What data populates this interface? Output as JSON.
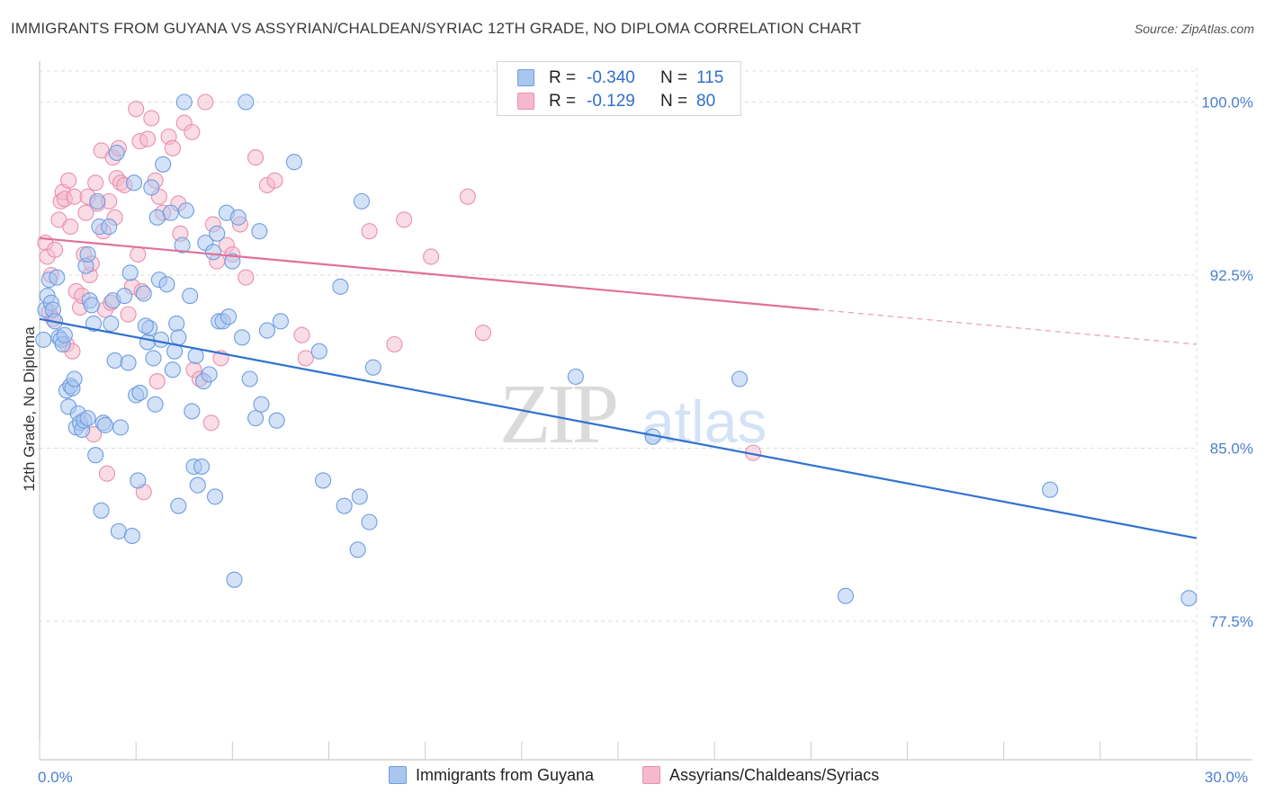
{
  "header": {
    "title": "IMMIGRANTS FROM GUYANA VS ASSYRIAN/CHALDEAN/SYRIAC 12TH GRADE, NO DIPLOMA CORRELATION CHART",
    "source": "Source: ZipAtlas.com"
  },
  "watermark": {
    "zip": "ZIP",
    "atlas": "atlas"
  },
  "legend": {
    "rows": [
      {
        "r_label": "R =",
        "r_value": "-0.340",
        "n_label": "N =",
        "n_value": "115"
      },
      {
        "r_label": "R =",
        "r_value": "-0.129",
        "n_label": "N =",
        "n_value": "80"
      }
    ]
  },
  "bottom_legend": {
    "series1": "Immigrants from Guyana",
    "series2": "Assyrians/Chaldeans/Syriacs"
  },
  "colors": {
    "series1_fill": "#a9c6ef",
    "series1_stroke": "#6e9de0",
    "series1_line": "#2f72d0",
    "series2_fill": "#f6b9cc",
    "series2_stroke": "#ea8fae",
    "series2_line": "#e0709a",
    "tick_label": "#4a7fd0",
    "grid": "#dddddd"
  },
  "chart_data": {
    "type": "scatter",
    "title": "IMMIGRANTS FROM GUYANA VS ASSYRIAN/CHALDEAN/SYRIAC 12TH GRADE, NO DIPLOMA CORRELATION CHART",
    "xlabel": "",
    "ylabel": "12th Grade, No Diploma",
    "xlim": [
      0,
      30
    ],
    "ylim": [
      71.5,
      101.5
    ],
    "x_ticks": [
      0,
      30
    ],
    "x_tick_labels": [
      "0.0%",
      "30.0%"
    ],
    "y_ticks": [
      77.5,
      85.0,
      92.5,
      100.0
    ],
    "y_tick_labels": [
      "77.5%",
      "85.0%",
      "92.5%",
      "100.0%"
    ],
    "grid": true,
    "legend_position": "top-center",
    "series": [
      {
        "name": "Immigrants from Guyana",
        "r": -0.34,
        "n": 115,
        "trend": {
          "x": [
            0,
            30
          ],
          "y": [
            90.6,
            81.1
          ],
          "solid_until": 30
        },
        "points": [
          [
            0.15,
            91.0
          ],
          [
            0.2,
            91.6
          ],
          [
            0.25,
            92.3
          ],
          [
            0.3,
            91.3
          ],
          [
            0.35,
            91.0
          ],
          [
            0.4,
            90.5
          ],
          [
            0.45,
            92.4
          ],
          [
            0.5,
            89.8
          ],
          [
            0.55,
            89.7
          ],
          [
            0.6,
            89.5
          ],
          [
            0.65,
            89.9
          ],
          [
            0.7,
            87.5
          ],
          [
            0.75,
            86.8
          ],
          [
            0.8,
            87.7
          ],
          [
            0.85,
            87.6
          ],
          [
            0.9,
            88.0
          ],
          [
            0.95,
            85.9
          ],
          [
            1.0,
            86.5
          ],
          [
            1.05,
            86.1
          ],
          [
            1.1,
            85.8
          ],
          [
            1.15,
            86.2
          ],
          [
            1.2,
            92.9
          ],
          [
            1.25,
            93.4
          ],
          [
            1.3,
            91.4
          ],
          [
            1.35,
            91.2
          ],
          [
            1.4,
            90.4
          ],
          [
            1.45,
            84.7
          ],
          [
            1.5,
            95.7
          ],
          [
            1.55,
            94.6
          ],
          [
            1.6,
            82.3
          ],
          [
            1.65,
            86.1
          ],
          [
            1.7,
            86.0
          ],
          [
            1.8,
            94.6
          ],
          [
            1.85,
            90.4
          ],
          [
            1.9,
            91.4
          ],
          [
            1.95,
            88.8
          ],
          [
            2.0,
            97.8
          ],
          [
            2.05,
            81.4
          ],
          [
            2.1,
            85.9
          ],
          [
            2.2,
            91.6
          ],
          [
            2.3,
            88.7
          ],
          [
            2.35,
            92.6
          ],
          [
            2.4,
            81.2
          ],
          [
            2.45,
            96.5
          ],
          [
            2.5,
            87.3
          ],
          [
            2.55,
            83.6
          ],
          [
            2.6,
            87.4
          ],
          [
            2.7,
            91.7
          ],
          [
            2.8,
            89.6
          ],
          [
            2.85,
            90.2
          ],
          [
            2.9,
            96.3
          ],
          [
            2.95,
            88.9
          ],
          [
            3.0,
            86.9
          ],
          [
            3.05,
            95.0
          ],
          [
            3.1,
            92.3
          ],
          [
            3.15,
            89.7
          ],
          [
            3.2,
            97.3
          ],
          [
            3.3,
            92.1
          ],
          [
            3.4,
            95.2
          ],
          [
            3.45,
            88.4
          ],
          [
            3.5,
            89.2
          ],
          [
            3.55,
            90.4
          ],
          [
            3.6,
            82.5
          ],
          [
            3.7,
            93.8
          ],
          [
            3.75,
            100.0
          ],
          [
            3.8,
            95.3
          ],
          [
            3.9,
            91.6
          ],
          [
            3.95,
            86.6
          ],
          [
            4.0,
            84.2
          ],
          [
            4.05,
            89.0
          ],
          [
            4.1,
            83.4
          ],
          [
            4.2,
            84.2
          ],
          [
            4.25,
            87.9
          ],
          [
            4.3,
            93.9
          ],
          [
            4.4,
            88.2
          ],
          [
            4.5,
            93.5
          ],
          [
            4.55,
            82.9
          ],
          [
            4.6,
            94.3
          ],
          [
            4.65,
            90.5
          ],
          [
            4.75,
            90.5
          ],
          [
            4.85,
            95.2
          ],
          [
            4.9,
            90.7
          ],
          [
            5.0,
            93.1
          ],
          [
            5.05,
            79.3
          ],
          [
            5.15,
            95.0
          ],
          [
            5.25,
            89.8
          ],
          [
            5.35,
            100.0
          ],
          [
            5.45,
            88.0
          ],
          [
            5.6,
            86.3
          ],
          [
            5.7,
            94.4
          ],
          [
            5.75,
            86.9
          ],
          [
            5.9,
            90.1
          ],
          [
            6.15,
            86.2
          ],
          [
            6.25,
            90.5
          ],
          [
            6.6,
            97.4
          ],
          [
            7.25,
            89.2
          ],
          [
            7.35,
            83.6
          ],
          [
            7.8,
            92.0
          ],
          [
            7.9,
            82.5
          ],
          [
            8.35,
            95.7
          ],
          [
            8.25,
            80.6
          ],
          [
            8.3,
            82.9
          ],
          [
            8.55,
            81.8
          ],
          [
            8.65,
            88.5
          ],
          [
            13.9,
            88.1
          ],
          [
            15.9,
            85.5
          ],
          [
            18.15,
            88.0
          ],
          [
            20.9,
            78.6
          ],
          [
            26.2,
            83.2
          ],
          [
            29.8,
            78.5
          ],
          [
            0.1,
            89.7
          ],
          [
            2.75,
            90.3
          ],
          [
            1.25,
            86.3
          ],
          [
            3.6,
            89.8
          ]
        ]
      },
      {
        "name": "Assyrians/Chaldeans/Syriacs",
        "r": -0.129,
        "n": 80,
        "trend": {
          "x": [
            0,
            30
          ],
          "y": [
            94.1,
            89.5
          ],
          "solid_until": 20.2
        },
        "points": [
          [
            0.15,
            93.9
          ],
          [
            0.2,
            93.3
          ],
          [
            0.25,
            90.9
          ],
          [
            0.3,
            92.5
          ],
          [
            0.35,
            90.6
          ],
          [
            0.4,
            93.6
          ],
          [
            0.5,
            94.9
          ],
          [
            0.55,
            95.7
          ],
          [
            0.6,
            96.1
          ],
          [
            0.65,
            95.8
          ],
          [
            0.7,
            89.5
          ],
          [
            0.75,
            96.6
          ],
          [
            0.8,
            94.6
          ],
          [
            0.85,
            89.2
          ],
          [
            0.9,
            95.9
          ],
          [
            0.95,
            91.8
          ],
          [
            1.05,
            91.1
          ],
          [
            1.1,
            91.6
          ],
          [
            1.15,
            93.4
          ],
          [
            1.2,
            95.2
          ],
          [
            1.25,
            95.9
          ],
          [
            1.3,
            92.5
          ],
          [
            1.35,
            93.0
          ],
          [
            1.4,
            85.6
          ],
          [
            1.45,
            96.5
          ],
          [
            1.5,
            95.6
          ],
          [
            1.6,
            97.9
          ],
          [
            1.65,
            94.4
          ],
          [
            1.7,
            91.0
          ],
          [
            1.75,
            83.9
          ],
          [
            1.8,
            95.7
          ],
          [
            1.85,
            91.3
          ],
          [
            1.9,
            97.6
          ],
          [
            2.0,
            96.7
          ],
          [
            2.05,
            98.0
          ],
          [
            2.1,
            96.5
          ],
          [
            2.2,
            96.4
          ],
          [
            2.3,
            90.8
          ],
          [
            2.4,
            92.0
          ],
          [
            2.5,
            99.7
          ],
          [
            2.55,
            93.4
          ],
          [
            2.6,
            98.3
          ],
          [
            2.65,
            91.8
          ],
          [
            2.7,
            83.1
          ],
          [
            2.8,
            98.4
          ],
          [
            2.9,
            99.3
          ],
          [
            3.0,
            96.6
          ],
          [
            3.05,
            87.9
          ],
          [
            3.1,
            95.9
          ],
          [
            3.2,
            95.2
          ],
          [
            3.35,
            98.5
          ],
          [
            3.45,
            98.0
          ],
          [
            3.6,
            95.6
          ],
          [
            3.65,
            94.3
          ],
          [
            3.75,
            99.1
          ],
          [
            3.95,
            98.7
          ],
          [
            4.0,
            88.4
          ],
          [
            4.15,
            88.0
          ],
          [
            4.3,
            100.0
          ],
          [
            4.45,
            86.1
          ],
          [
            4.5,
            94.7
          ],
          [
            4.6,
            93.1
          ],
          [
            4.7,
            88.9
          ],
          [
            4.85,
            93.8
          ],
          [
            5.0,
            93.4
          ],
          [
            5.2,
            94.7
          ],
          [
            5.35,
            92.4
          ],
          [
            5.6,
            97.6
          ],
          [
            5.9,
            96.4
          ],
          [
            6.1,
            96.6
          ],
          [
            6.8,
            89.9
          ],
          [
            6.9,
            88.9
          ],
          [
            8.55,
            94.4
          ],
          [
            9.2,
            89.5
          ],
          [
            9.45,
            94.9
          ],
          [
            10.15,
            93.3
          ],
          [
            11.1,
            95.9
          ],
          [
            11.5,
            90.0
          ],
          [
            18.5,
            84.8
          ],
          [
            1.95,
            95.0
          ]
        ]
      }
    ]
  }
}
